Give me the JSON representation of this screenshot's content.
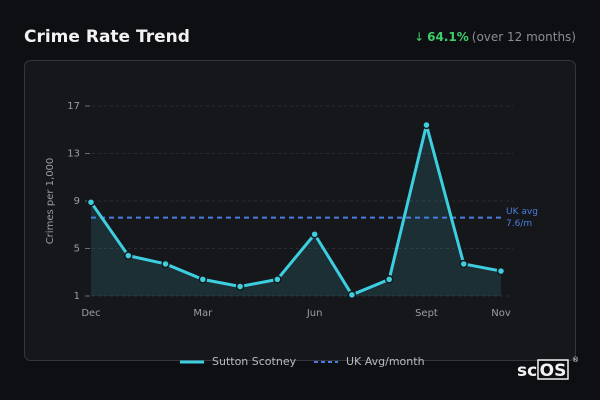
{
  "header": {
    "title": "Crime Rate Trend",
    "change_arrow": "↓",
    "change": "64.1%",
    "change_note": "(over 12 months)"
  },
  "chart_data": {
    "type": "line",
    "ylabel": "Crimes per 1,000",
    "categories": [
      "Dec",
      null,
      null,
      "Mar",
      null,
      null,
      "Jun",
      null,
      null,
      "Sept",
      null,
      "Nov"
    ],
    "series": [
      {
        "name": "Sutton Scotney",
        "color": "#3dcfe0",
        "values": [
          8.9,
          4.4,
          3.7,
          2.4,
          1.8,
          2.4,
          6.2,
          1.1,
          2.4,
          15.4,
          3.7,
          3.1
        ]
      }
    ],
    "reference": {
      "name": "UK Avg/month",
      "label": "UK avg",
      "value": 7.6,
      "value_label": "7.6/m",
      "color": "#4a7de0"
    },
    "ylim": [
      1,
      17
    ],
    "yticks": [
      1,
      5,
      9,
      13,
      17
    ],
    "grid": true
  },
  "watermark": {
    "prefix": "sc",
    "boxed": "OS",
    "mark": "®"
  }
}
